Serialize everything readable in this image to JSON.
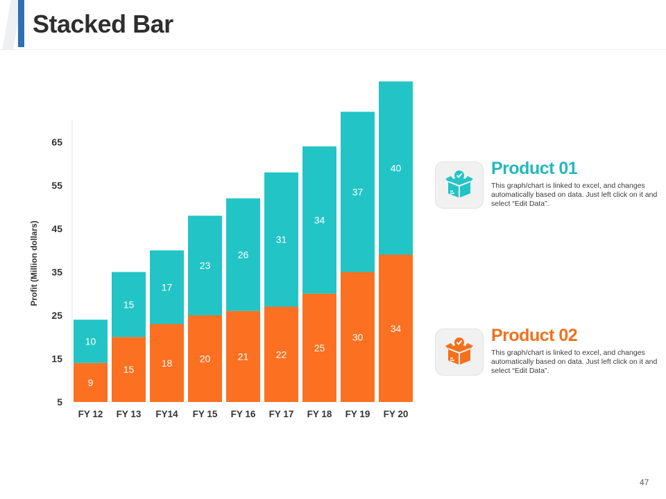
{
  "page": {
    "title": "Stacked Bar",
    "page_number": "47"
  },
  "colors": {
    "accent": "#2f6fb5",
    "series1": "#fb7021",
    "series2": "#23c4c6",
    "product1_title": "#23b8bc",
    "product2_title": "#f2711c"
  },
  "chart_data": {
    "type": "bar",
    "stacked": true,
    "categories": [
      "FY 12",
      "FY 13",
      "FY14",
      "FY 15",
      "FY 16",
      "FY 17",
      "FY 18",
      "FY 19",
      "FY 20"
    ],
    "series": [
      {
        "name": "Product 02",
        "values": [
          9,
          15,
          18,
          20,
          21,
          22,
          25,
          30,
          34
        ],
        "color": "#fb7021"
      },
      {
        "name": "Product 01",
        "values": [
          10,
          15,
          17,
          23,
          26,
          31,
          34,
          37,
          40
        ],
        "color": "#23c4c6"
      }
    ],
    "ylabel": "Profit  (Million dollars)",
    "xlabel": "",
    "yticks": [
      5,
      15,
      25,
      35,
      45,
      55,
      65
    ],
    "ylim": [
      5,
      70
    ],
    "grid": false
  },
  "products": [
    {
      "title": "Product 01",
      "desc": "This graph/chart is linked to excel, and changes automatically based on data. Just left click on it and select “Edit Data”.",
      "icon": "box-check-icon"
    },
    {
      "title": "Product 02",
      "desc": "This graph/chart is linked to excel, and changes automatically based on data. Just left click on it and select “Edit Data”.",
      "icon": "box-check-icon"
    }
  ]
}
